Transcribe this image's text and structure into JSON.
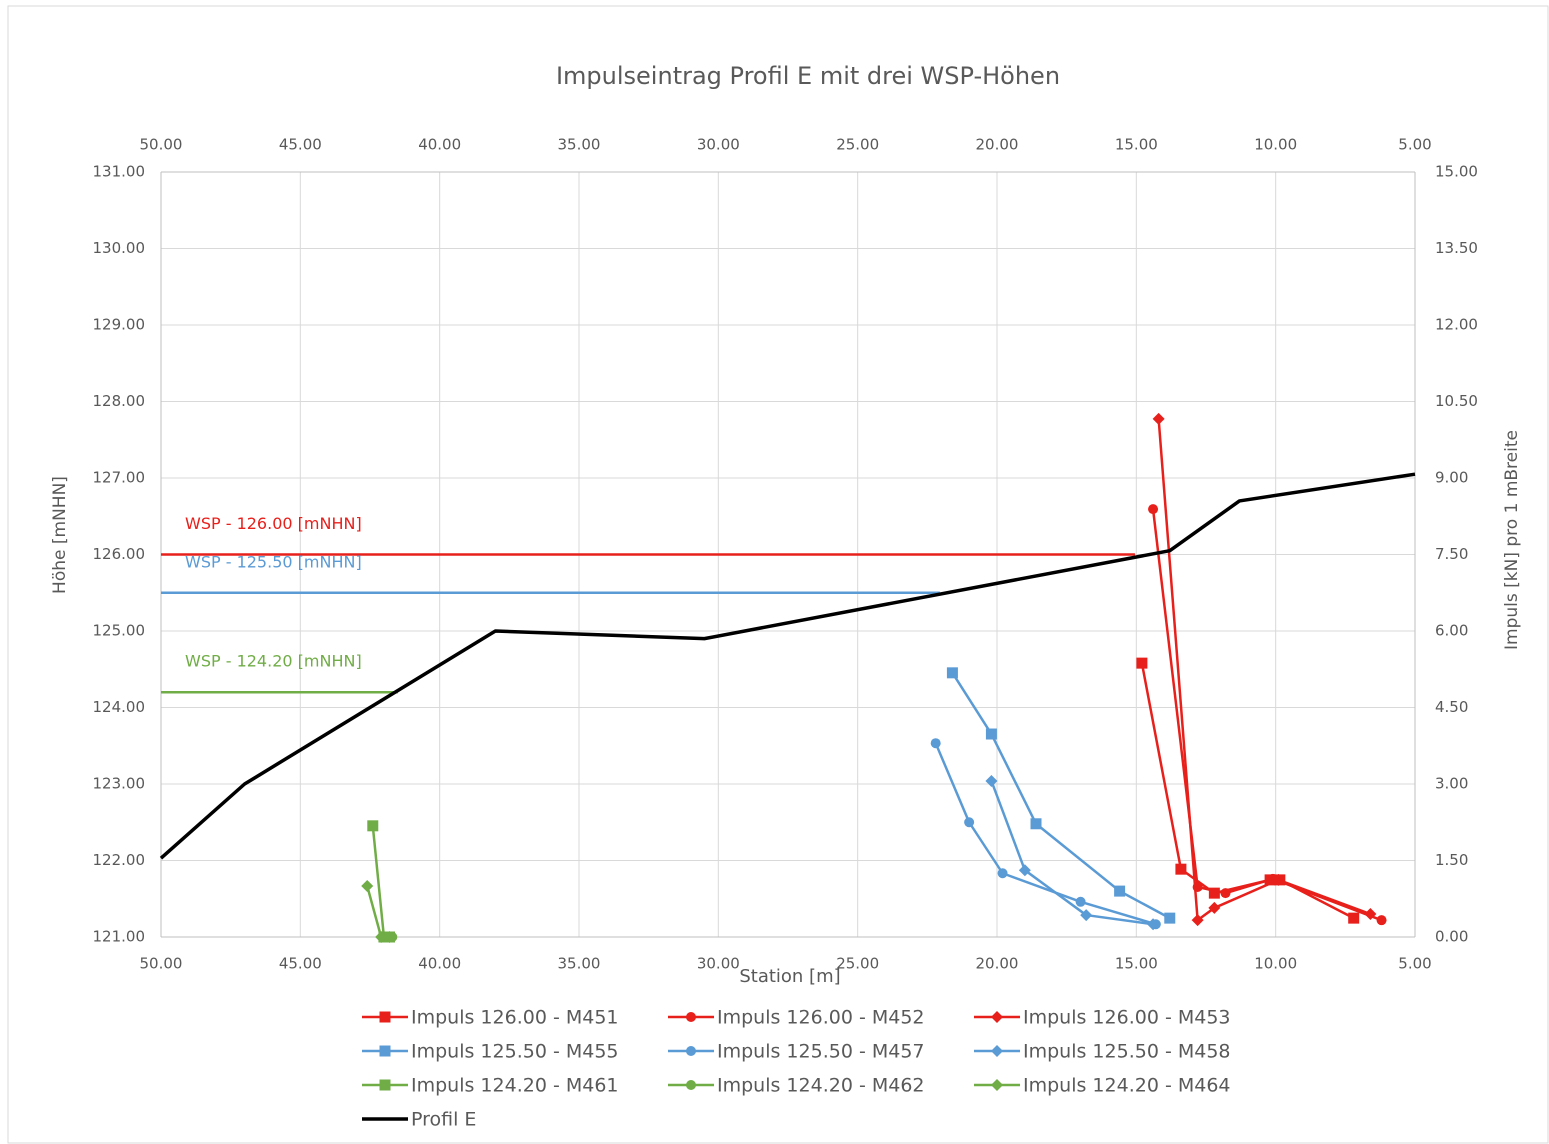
{
  "chart_data": {
    "type": "line",
    "title": "Impulseintrag Profil E mit drei WSP-Höhen",
    "xlabel": "Station [m]",
    "ylabel": "Höhe [mNHN]",
    "y2label": "Impuls [kN] pro 1 mBreite",
    "x_reversed": true,
    "grid": true,
    "legend": "bottom",
    "xlim": [
      50,
      5
    ],
    "xticks": [
      {
        "value": 50,
        "label": "50.00"
      },
      {
        "value": 45,
        "label": "45.00"
      },
      {
        "value": 40,
        "label": "40.00"
      },
      {
        "value": 35,
        "label": "35.00"
      },
      {
        "value": 30,
        "label": "30.00"
      },
      {
        "value": 25,
        "label": "25.00"
      },
      {
        "value": 20,
        "label": "20.00"
      },
      {
        "value": 15,
        "label": "15.00"
      },
      {
        "value": 10,
        "label": "10.00"
      },
      {
        "value": 5,
        "label": "5.00"
      }
    ],
    "ylim": [
      121,
      131
    ],
    "yticks": [
      {
        "value": 121,
        "label": "121.00"
      },
      {
        "value": 122,
        "label": "122.00"
      },
      {
        "value": 123,
        "label": "123.00"
      },
      {
        "value": 124,
        "label": "124.00"
      },
      {
        "value": 125,
        "label": "125.00"
      },
      {
        "value": 126,
        "label": "126.00"
      },
      {
        "value": 127,
        "label": "127.00"
      },
      {
        "value": 128,
        "label": "128.00"
      },
      {
        "value": 129,
        "label": "129.00"
      },
      {
        "value": 130,
        "label": "130.00"
      },
      {
        "value": 131,
        "label": "131.00"
      }
    ],
    "y2lim": [
      0,
      15
    ],
    "y2ticks": [
      {
        "value": 0,
        "label": "0.00"
      },
      {
        "value": 1.5,
        "label": "1.50"
      },
      {
        "value": 3,
        "label": "3.00"
      },
      {
        "value": 4.5,
        "label": "4.50"
      },
      {
        "value": 6,
        "label": "6.00"
      },
      {
        "value": 7.5,
        "label": "7.50"
      },
      {
        "value": 9,
        "label": "9.00"
      },
      {
        "value": 10.5,
        "label": "10.50"
      },
      {
        "value": 12,
        "label": "12.00"
      },
      {
        "value": 13.5,
        "label": "13.50"
      },
      {
        "value": 15,
        "label": "15.00"
      }
    ],
    "wsp_lines": [
      {
        "label": "WSP - 126.00 [mNHN]",
        "y": 126,
        "x": [
          50,
          15.05
        ],
        "color": "#e8201c"
      },
      {
        "label": "WSP - 125.50 [mNHN]",
        "y": 125.5,
        "x": [
          50,
          22.05
        ],
        "color": "#5b9bd5"
      },
      {
        "label": "WSP - 124.20 [mNHN]",
        "y": 124.2,
        "x": [
          50,
          41.5
        ],
        "color": "#70ad47"
      }
    ],
    "series": [
      {
        "name": "Impuls 126.00 - M451",
        "color": "#e8201c",
        "marker": "square",
        "axis": "y2",
        "x": [
          14.8,
          13.4,
          12.2,
          10.2,
          9.85,
          7.2
        ],
        "values": [
          5.37,
          1.33,
          0.86,
          1.12,
          1.12,
          0.37
        ]
      },
      {
        "name": "Impuls 126.00 - M452",
        "color": "#e8201c",
        "marker": "circle",
        "axis": "y2",
        "x": [
          14.4,
          12.8,
          11.8,
          10.1,
          6.2
        ],
        "values": [
          8.39,
          0.98,
          0.86,
          1.14,
          0.33
        ]
      },
      {
        "name": "Impuls 126.00 - M453",
        "color": "#e8201c",
        "marker": "diamond",
        "axis": "y2",
        "x": [
          14.2,
          12.8,
          12.2,
          9.9,
          6.6
        ],
        "values": [
          10.16,
          0.33,
          0.57,
          1.12,
          0.45
        ]
      },
      {
        "name": "Impuls 125.50 - M455",
        "color": "#5b9bd5",
        "marker": "square",
        "axis": "y2",
        "x": [
          21.6,
          20.2,
          18.6,
          15.6,
          13.8
        ],
        "values": [
          5.18,
          3.98,
          2.22,
          0.9,
          0.37
        ]
      },
      {
        "name": "Impuls 125.50 - M457",
        "color": "#5b9bd5",
        "marker": "circle",
        "axis": "y2",
        "x": [
          22.2,
          21.0,
          19.8,
          17.0,
          14.3
        ],
        "values": [
          3.8,
          2.25,
          1.25,
          0.69,
          0.25
        ]
      },
      {
        "name": "Impuls 125.50 - M458",
        "color": "#5b9bd5",
        "marker": "diamond",
        "axis": "y2",
        "x": [
          20.2,
          19.0,
          16.8,
          14.4
        ],
        "values": [
          3.06,
          1.31,
          0.43,
          0.25
        ]
      },
      {
        "name": "Impuls 124.20 - M461",
        "color": "#70ad47",
        "marker": "square",
        "axis": "y2",
        "x": [
          42.4,
          42.0,
          41.8
        ],
        "values": [
          2.18,
          0,
          0
        ]
      },
      {
        "name": "Impuls 124.20 - M462",
        "color": "#70ad47",
        "marker": "circle",
        "axis": "y2",
        "x": [
          42.0,
          41.7
        ],
        "values": [
          0,
          0
        ]
      },
      {
        "name": "Impuls 124.20 - M464",
        "color": "#70ad47",
        "marker": "diamond",
        "axis": "y2",
        "x": [
          42.6,
          42.1,
          41.8
        ],
        "values": [
          1.0,
          0,
          0
        ]
      },
      {
        "name": "Profil E",
        "color": "#000000",
        "marker": "none",
        "axis": "y",
        "x": [
          50,
          47,
          38,
          30.5,
          13.8,
          11.3,
          5
        ],
        "values": [
          122.03,
          123.0,
          125.0,
          124.9,
          126.05,
          126.7,
          127.05
        ]
      }
    ]
  }
}
